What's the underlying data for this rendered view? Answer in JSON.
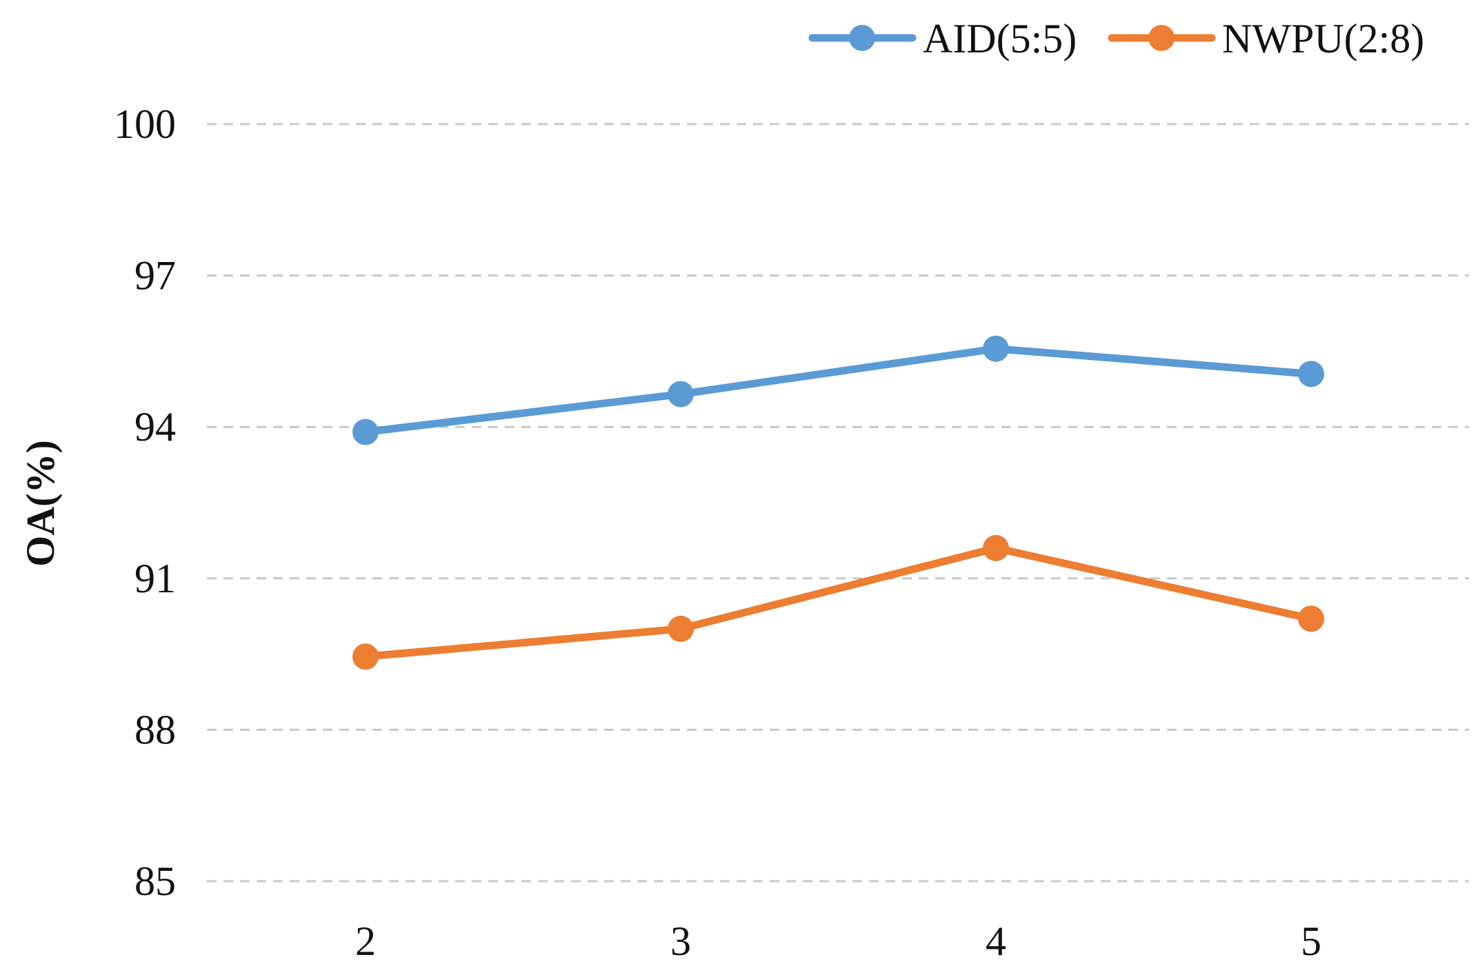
{
  "chart_data": {
    "type": "line",
    "title": "",
    "xlabel": "",
    "ylabel": "OA(%)",
    "x": [
      2,
      3,
      4,
      5
    ],
    "x_tick_labels": [
      "2",
      "3",
      "4",
      "5"
    ],
    "ylim": [
      85,
      100
    ],
    "y_ticks": [
      100,
      97,
      94,
      91,
      88,
      85
    ],
    "y_tick_labels": [
      "100",
      "97",
      "94",
      "91",
      "88",
      "85"
    ],
    "grid": "horizontal dashed",
    "legend_position": "top-right",
    "series": [
      {
        "name": "AID(5:5)",
        "color": "#5B9BD5",
        "values": [
          93.9,
          94.65,
          95.55,
          95.05
        ]
      },
      {
        "name": "NWPU(2:8)",
        "color": "#ED7D31",
        "values": [
          89.45,
          90.0,
          91.6,
          90.2
        ]
      }
    ]
  }
}
